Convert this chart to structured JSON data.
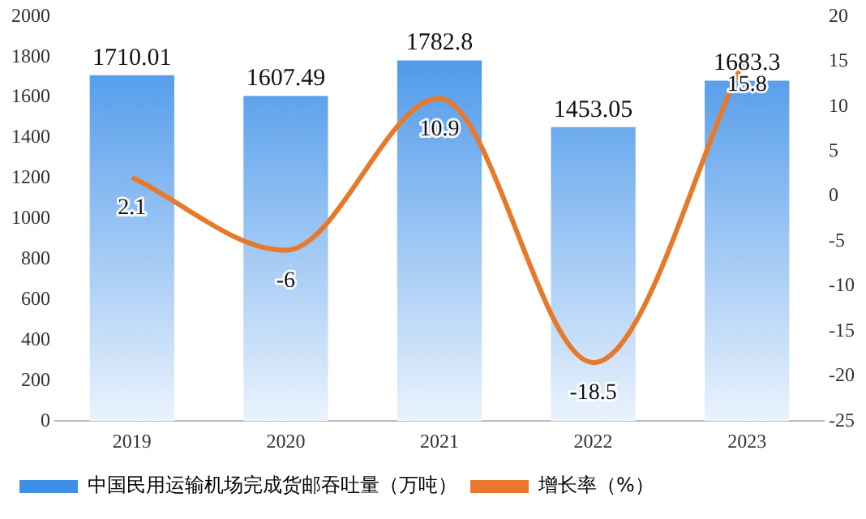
{
  "chart_data": {
    "type": "bar",
    "categories": [
      "2019",
      "2020",
      "2021",
      "2022",
      "2023"
    ],
    "series": [
      {
        "name": "中国民用运输机场完成货邮吞吐量（万吨）",
        "color": "#3d8fe8",
        "values": [
          1710.01,
          1607.49,
          1782.8,
          1453.05,
          1683.3
        ]
      },
      {
        "name": "增长率（%）",
        "type": "line",
        "axis": "y2",
        "color": "#e8792a",
        "values": [
          2.1,
          -6,
          10.9,
          -18.5,
          15.8
        ]
      }
    ],
    "ylim": [
      0,
      2000
    ],
    "yticks": [
      0,
      200,
      400,
      600,
      800,
      1000,
      1200,
      1400,
      1600,
      1800,
      2000
    ],
    "y2lim": [
      -25,
      20
    ],
    "y2ticks": [
      -25,
      -20,
      -15,
      -10,
      -5,
      0,
      5,
      10,
      15,
      20
    ],
    "data_labels": true,
    "grid": false,
    "legend": "bottom",
    "marker": "none",
    "line_style": "solid"
  }
}
